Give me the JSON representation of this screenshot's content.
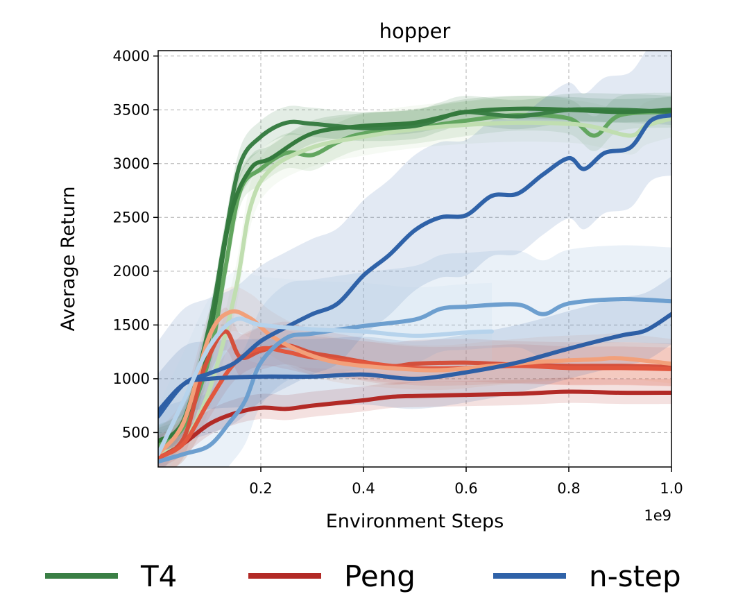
{
  "chart_data": {
    "type": "line",
    "title": "hopper",
    "xlabel": "Environment Steps",
    "ylabel": "Average Return",
    "x_offset_label": "1e9",
    "xlim": [
      0.0,
      1.0
    ],
    "ylim": [
      180,
      4050
    ],
    "xticks": [
      0.2,
      0.4,
      0.6,
      0.8,
      1.0
    ],
    "xtick_labels": [
      "0.2",
      "0.4",
      "0.6",
      "0.8",
      "1.0"
    ],
    "yticks": [
      500,
      1000,
      1500,
      2000,
      2500,
      3000,
      3500,
      4000
    ],
    "ytick_labels": [
      "500",
      "1000",
      "1500",
      "2000",
      "2500",
      "3000",
      "3500",
      "4000"
    ],
    "grid": true,
    "legend_position": "bottom",
    "legend": [
      {
        "label": "T4",
        "color": "#3a7f45"
      },
      {
        "label": "Peng",
        "color": "#b22a26"
      },
      {
        "label": "n-step",
        "color": "#2f62a8"
      }
    ],
    "series": [
      {
        "color": "#62a65f",
        "band": 180,
        "points": [
          [
            0,
            380
          ],
          [
            0.05,
            560
          ],
          [
            0.1,
            1200
          ],
          [
            0.13,
            2000
          ],
          [
            0.16,
            2750
          ],
          [
            0.2,
            2950
          ],
          [
            0.25,
            3100
          ],
          [
            0.3,
            3080
          ],
          [
            0.35,
            3200
          ],
          [
            0.4,
            3280
          ],
          [
            0.5,
            3330
          ],
          [
            0.6,
            3400
          ],
          [
            0.7,
            3450
          ],
          [
            0.8,
            3420
          ],
          [
            0.85,
            3260
          ],
          [
            0.9,
            3450
          ],
          [
            1.0,
            3480
          ]
        ]
      },
      {
        "color": "#c0deb0",
        "band": 220,
        "points": [
          [
            0,
            300
          ],
          [
            0.05,
            420
          ],
          [
            0.1,
            900
          ],
          [
            0.15,
            1800
          ],
          [
            0.18,
            2600
          ],
          [
            0.22,
            2950
          ],
          [
            0.3,
            3150
          ],
          [
            0.4,
            3250
          ],
          [
            0.5,
            3320
          ],
          [
            0.6,
            3360
          ],
          [
            0.7,
            3380
          ],
          [
            0.8,
            3370
          ],
          [
            0.85,
            3340
          ],
          [
            0.92,
            3260
          ],
          [
            0.95,
            3350
          ],
          [
            1.0,
            3420
          ]
        ]
      },
      {
        "color": "#3a7f45",
        "band": 150,
        "points": [
          [
            0,
            420
          ],
          [
            0.05,
            620
          ],
          [
            0.1,
            1500
          ],
          [
            0.13,
            2300
          ],
          [
            0.16,
            3000
          ],
          [
            0.2,
            3250
          ],
          [
            0.25,
            3380
          ],
          [
            0.3,
            3370
          ],
          [
            0.4,
            3330
          ],
          [
            0.5,
            3350
          ],
          [
            0.55,
            3420
          ],
          [
            0.6,
            3480
          ],
          [
            0.7,
            3440
          ],
          [
            0.8,
            3500
          ],
          [
            0.9,
            3500
          ],
          [
            1.0,
            3480
          ]
        ]
      },
      {
        "color": "#347a3d",
        "band": 120,
        "points": [
          [
            0,
            420
          ],
          [
            0.05,
            600
          ],
          [
            0.1,
            1400
          ],
          [
            0.14,
            2500
          ],
          [
            0.18,
            2950
          ],
          [
            0.22,
            3050
          ],
          [
            0.3,
            3280
          ],
          [
            0.4,
            3350
          ],
          [
            0.5,
            3380
          ],
          [
            0.6,
            3480
          ],
          [
            0.7,
            3510
          ],
          [
            0.8,
            3500
          ],
          [
            0.9,
            3480
          ],
          [
            1.0,
            3500
          ]
        ]
      },
      {
        "color": "#b22a26",
        "band": 130,
        "points": [
          [
            0,
            260
          ],
          [
            0.05,
            400
          ],
          [
            0.1,
            580
          ],
          [
            0.15,
            680
          ],
          [
            0.2,
            730
          ],
          [
            0.25,
            720
          ],
          [
            0.3,
            750
          ],
          [
            0.4,
            800
          ],
          [
            0.45,
            830
          ],
          [
            0.5,
            840
          ],
          [
            0.6,
            850
          ],
          [
            0.7,
            860
          ],
          [
            0.8,
            880
          ],
          [
            0.9,
            870
          ],
          [
            1.0,
            870
          ]
        ]
      },
      {
        "color": "#d4503c",
        "band": 220,
        "points": [
          [
            0,
            260
          ],
          [
            0.05,
            450
          ],
          [
            0.09,
            1100
          ],
          [
            0.13,
            1440
          ],
          [
            0.16,
            1200
          ],
          [
            0.2,
            1260
          ],
          [
            0.25,
            1310
          ],
          [
            0.3,
            1240
          ],
          [
            0.35,
            1200
          ],
          [
            0.45,
            1120
          ],
          [
            0.5,
            1140
          ],
          [
            0.6,
            1150
          ],
          [
            0.7,
            1130
          ],
          [
            0.8,
            1120
          ],
          [
            0.9,
            1120
          ],
          [
            1.0,
            1110
          ]
        ]
      },
      {
        "color": "#e2573e",
        "band": 200,
        "points": [
          [
            0,
            270
          ],
          [
            0.05,
            400
          ],
          [
            0.1,
            800
          ],
          [
            0.15,
            1150
          ],
          [
            0.2,
            1280
          ],
          [
            0.25,
            1250
          ],
          [
            0.3,
            1200
          ],
          [
            0.4,
            1150
          ],
          [
            0.5,
            1100
          ],
          [
            0.6,
            1100
          ],
          [
            0.7,
            1120
          ],
          [
            0.8,
            1100
          ],
          [
            0.9,
            1100
          ],
          [
            1.0,
            1090
          ]
        ]
      },
      {
        "color": "#f2a07a",
        "band": 230,
        "points": [
          [
            0,
            300
          ],
          [
            0.05,
            600
          ],
          [
            0.1,
            1400
          ],
          [
            0.14,
            1620
          ],
          [
            0.18,
            1560
          ],
          [
            0.22,
            1400
          ],
          [
            0.28,
            1250
          ],
          [
            0.35,
            1150
          ],
          [
            0.45,
            1100
          ],
          [
            0.55,
            1080
          ],
          [
            0.65,
            1120
          ],
          [
            0.75,
            1160
          ],
          [
            0.85,
            1180
          ],
          [
            0.9,
            1190
          ],
          [
            1.0,
            1140
          ]
        ]
      },
      {
        "color": "#2f62a8",
        "band": 700,
        "points": [
          [
            0,
            650
          ],
          [
            0.05,
            950
          ],
          [
            0.1,
            1050
          ],
          [
            0.15,
            1150
          ],
          [
            0.2,
            1350
          ],
          [
            0.25,
            1480
          ],
          [
            0.3,
            1600
          ],
          [
            0.35,
            1700
          ],
          [
            0.4,
            1960
          ],
          [
            0.45,
            2150
          ],
          [
            0.5,
            2380
          ],
          [
            0.55,
            2500
          ],
          [
            0.6,
            2520
          ],
          [
            0.65,
            2700
          ],
          [
            0.7,
            2720
          ],
          [
            0.75,
            2900
          ],
          [
            0.8,
            3050
          ],
          [
            0.83,
            2950
          ],
          [
            0.87,
            3100
          ],
          [
            0.92,
            3150
          ],
          [
            0.96,
            3400
          ],
          [
            1.0,
            3450
          ]
        ]
      },
      {
        "color": "#6d9fcf",
        "band": 500,
        "points": [
          [
            0,
            230
          ],
          [
            0.05,
            300
          ],
          [
            0.1,
            380
          ],
          [
            0.14,
            600
          ],
          [
            0.17,
            800
          ],
          [
            0.2,
            1150
          ],
          [
            0.25,
            1380
          ],
          [
            0.3,
            1420
          ],
          [
            0.4,
            1490
          ],
          [
            0.5,
            1550
          ],
          [
            0.55,
            1650
          ],
          [
            0.6,
            1670
          ],
          [
            0.7,
            1690
          ],
          [
            0.75,
            1600
          ],
          [
            0.8,
            1700
          ],
          [
            0.9,
            1740
          ],
          [
            1.0,
            1720
          ]
        ]
      },
      {
        "color": "#2e5fa5",
        "band": 350,
        "points": [
          [
            0,
            700
          ],
          [
            0.05,
            950
          ],
          [
            0.1,
            1000
          ],
          [
            0.2,
            1020
          ],
          [
            0.3,
            1020
          ],
          [
            0.4,
            1040
          ],
          [
            0.5,
            1000
          ],
          [
            0.6,
            1060
          ],
          [
            0.7,
            1150
          ],
          [
            0.8,
            1280
          ],
          [
            0.9,
            1400
          ],
          [
            0.95,
            1450
          ],
          [
            1.0,
            1600
          ]
        ]
      },
      {
        "color": "#b6d3ec",
        "band": 450,
        "points": [
          [
            0,
            300
          ],
          [
            0.05,
            800
          ],
          [
            0.1,
            1300
          ],
          [
            0.15,
            1550
          ],
          [
            0.2,
            1500
          ],
          [
            0.3,
            1460
          ],
          [
            0.4,
            1440
          ],
          [
            0.5,
            1400
          ],
          [
            0.6,
            1430
          ],
          [
            0.65,
            1440
          ]
        ]
      }
    ]
  }
}
